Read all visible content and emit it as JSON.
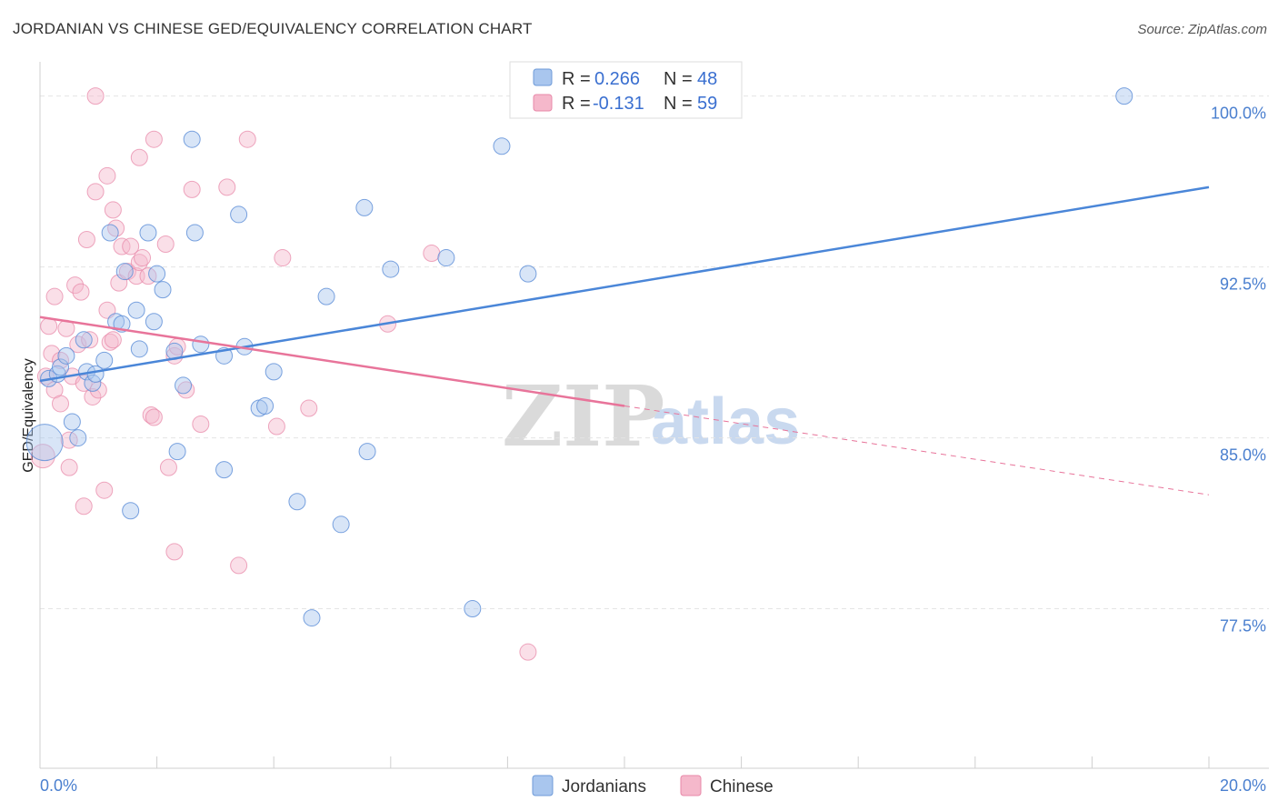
{
  "header": {
    "title": "JORDANIAN VS CHINESE GED/EQUIVALENCY CORRELATION CHART",
    "source": "Source: ZipAtlas.com"
  },
  "watermark": {
    "zip": "ZIP",
    "atlas": "atlas"
  },
  "legend": {
    "rows": [
      {
        "r_label": "R =",
        "r_value": "0.266",
        "n_label": "N =",
        "n_value": "48",
        "color": "#a9c6ee"
      },
      {
        "r_label": "R =",
        "r_value": "-0.131",
        "n_label": "N =",
        "n_value": "59",
        "color": "#f5b8cb"
      }
    ]
  },
  "bottom_legend": {
    "items": [
      "Jordanians",
      "Chinese"
    ]
  },
  "chart_data": {
    "type": "scatter",
    "title": "JORDANIAN VS CHINESE GED/EQUIVALENCY CORRELATION CHART",
    "xlabel": "",
    "ylabel": "GED/Equivalency",
    "xlim": [
      0,
      20
    ],
    "ylim": [
      70.5,
      101.5
    ],
    "x_tick_labels": [
      "0.0%",
      "20.0%"
    ],
    "y_ticks": [
      77.5,
      85.0,
      92.5,
      100.0
    ],
    "y_tick_labels": [
      "77.5%",
      "85.0%",
      "92.5%",
      "100.0%"
    ],
    "grid": true,
    "colors": {
      "jordanians": "#4a86d8",
      "chinese": "#e8749a"
    },
    "series": [
      {
        "name": "Jordanians",
        "r": 0.266,
        "n": 48,
        "trend": {
          "x": [
            0,
            20
          ],
          "y": [
            87.5,
            96.0
          ]
        },
        "points": [
          [
            0.08,
            84.8
          ],
          [
            0.15,
            87.6
          ],
          [
            0.3,
            87.8
          ],
          [
            0.35,
            88.1
          ],
          [
            0.45,
            88.6
          ],
          [
            0.55,
            85.7
          ],
          [
            0.65,
            85.0
          ],
          [
            0.75,
            89.3
          ],
          [
            0.8,
            87.9
          ],
          [
            0.9,
            87.4
          ],
          [
            0.95,
            87.8
          ],
          [
            1.1,
            88.4
          ],
          [
            1.2,
            94.0
          ],
          [
            1.3,
            90.1
          ],
          [
            1.4,
            90.0
          ],
          [
            1.45,
            92.3
          ],
          [
            1.55,
            81.8
          ],
          [
            1.65,
            90.6
          ],
          [
            1.7,
            88.9
          ],
          [
            1.85,
            94.0
          ],
          [
            1.95,
            90.1
          ],
          [
            2.0,
            92.2
          ],
          [
            2.1,
            91.5
          ],
          [
            2.3,
            88.8
          ],
          [
            2.35,
            84.4
          ],
          [
            2.45,
            87.3
          ],
          [
            2.6,
            98.1
          ],
          [
            2.65,
            94.0
          ],
          [
            2.75,
            89.1
          ],
          [
            3.15,
            88.6
          ],
          [
            3.15,
            83.6
          ],
          [
            3.4,
            94.8
          ],
          [
            3.5,
            89.0
          ],
          [
            3.75,
            86.3
          ],
          [
            3.85,
            86.4
          ],
          [
            4.0,
            87.9
          ],
          [
            4.4,
            82.2
          ],
          [
            4.65,
            77.1
          ],
          [
            4.9,
            91.2
          ],
          [
            5.15,
            81.2
          ],
          [
            5.55,
            95.1
          ],
          [
            5.6,
            84.4
          ],
          [
            6.0,
            92.4
          ],
          [
            6.95,
            92.9
          ],
          [
            7.4,
            77.5
          ],
          [
            7.9,
            97.8
          ],
          [
            8.35,
            92.2
          ],
          [
            18.55,
            100.0
          ]
        ]
      },
      {
        "name": "Chinese",
        "r": -0.131,
        "n": 59,
        "trend_solid": {
          "x": [
            0,
            10
          ],
          "y": [
            90.3,
            86.4
          ]
        },
        "trend_dashed": {
          "x": [
            10,
            20
          ],
          "y": [
            86.4,
            82.5
          ]
        },
        "points": [
          [
            0.05,
            84.2
          ],
          [
            0.1,
            87.7
          ],
          [
            0.15,
            89.9
          ],
          [
            0.2,
            88.7
          ],
          [
            0.25,
            91.2
          ],
          [
            0.25,
            87.1
          ],
          [
            0.35,
            88.4
          ],
          [
            0.35,
            86.5
          ],
          [
            0.45,
            89.8
          ],
          [
            0.5,
            84.9
          ],
          [
            0.5,
            83.7
          ],
          [
            0.55,
            87.7
          ],
          [
            0.6,
            91.7
          ],
          [
            0.65,
            89.1
          ],
          [
            0.7,
            91.4
          ],
          [
            0.75,
            87.4
          ],
          [
            0.75,
            82.0
          ],
          [
            0.8,
            93.7
          ],
          [
            0.85,
            89.3
          ],
          [
            0.9,
            86.8
          ],
          [
            0.95,
            95.8
          ],
          [
            1.0,
            87.1
          ],
          [
            1.1,
            82.7
          ],
          [
            1.15,
            90.6
          ],
          [
            1.15,
            96.5
          ],
          [
            1.2,
            89.2
          ],
          [
            1.25,
            95.0
          ],
          [
            1.3,
            94.2
          ],
          [
            1.35,
            91.8
          ],
          [
            1.4,
            93.4
          ],
          [
            1.5,
            92.3
          ],
          [
            1.55,
            93.4
          ],
          [
            1.65,
            92.1
          ],
          [
            1.7,
            92.7
          ],
          [
            1.7,
            97.3
          ],
          [
            1.75,
            92.9
          ],
          [
            1.85,
            92.1
          ],
          [
            1.9,
            86.0
          ],
          [
            1.95,
            98.1
          ],
          [
            1.95,
            85.9
          ],
          [
            2.15,
            93.5
          ],
          [
            2.2,
            83.7
          ],
          [
            2.3,
            80.0
          ],
          [
            2.3,
            88.6
          ],
          [
            2.5,
            87.1
          ],
          [
            2.6,
            95.9
          ],
          [
            2.75,
            85.6
          ],
          [
            3.2,
            96.0
          ],
          [
            3.4,
            79.4
          ],
          [
            3.55,
            98.1
          ],
          [
            4.05,
            85.5
          ],
          [
            4.15,
            92.9
          ],
          [
            4.6,
            86.3
          ],
          [
            5.95,
            90.0
          ],
          [
            6.7,
            93.1
          ],
          [
            8.35,
            75.6
          ],
          [
            0.95,
            100.0
          ],
          [
            1.25,
            89.3
          ],
          [
            2.35,
            89.0
          ]
        ]
      }
    ]
  }
}
